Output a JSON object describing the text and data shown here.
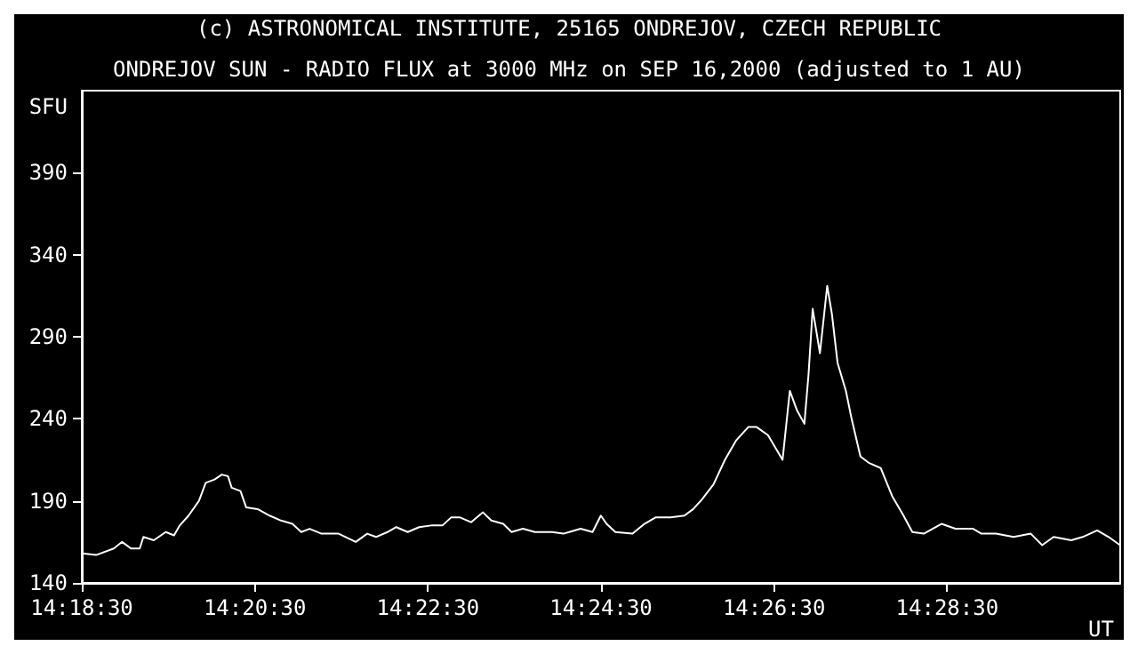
{
  "chart_data": {
    "type": "line",
    "title": "ONDREJOV SUN - RADIO FLUX at 3000 MHz on SEP 16,2000 (adjusted to 1 AU)",
    "annotations": [
      "(c) ASTRONOMICAL INSTITUTE, 25165 ONDREJOV, CZECH REPUBLIC"
    ],
    "xlabel": "UT",
    "ylabel": "SFU",
    "x": [
      14.308333,
      14.3111,
      14.3145,
      14.3161,
      14.3178,
      14.3195,
      14.3202,
      14.3222,
      14.3245,
      14.3261,
      14.3272,
      14.3289,
      14.3309,
      14.3322,
      14.3339,
      14.3353,
      14.3365,
      14.3372,
      14.3389,
      14.34,
      14.3422,
      14.3445,
      14.3467,
      14.3489,
      14.3506,
      14.3522,
      14.3545,
      14.3578,
      14.3611,
      14.3633,
      14.365,
      14.3672,
      14.3689,
      14.3711,
      14.3733,
      14.3756,
      14.3778,
      14.3795,
      14.3811,
      14.3833,
      14.3856,
      14.3872,
      14.3895,
      14.3911,
      14.3933,
      14.3956,
      14.3989,
      14.4011,
      14.4022,
      14.4044,
      14.4067,
      14.4083,
      14.4094,
      14.4111,
      14.4144,
      14.4167,
      14.4189,
      14.4217,
      14.4244,
      14.4261,
      14.4278,
      14.43,
      14.4322,
      14.4344,
      14.4367,
      14.4383,
      14.4405,
      14.4433,
      14.4447,
      14.4461,
      14.4475,
      14.4483,
      14.4491,
      14.4505,
      14.4519,
      14.4528,
      14.4539,
      14.4555,
      14.4566,
      14.4583,
      14.46,
      14.4622,
      14.4644,
      14.4666,
      14.4683,
      14.4705,
      14.4739,
      14.4766,
      14.48,
      14.4816,
      14.4844,
      14.4878,
      14.4911,
      14.4933,
      14.4955,
      14.4989,
      14.5011,
      14.5039,
      14.5061,
      14.5083
    ],
    "series": [
      {
        "color": "#ffffff",
        "values": [
          158,
          157,
          161,
          165,
          161,
          161,
          168,
          166,
          171,
          169,
          175,
          181,
          190,
          201,
          203,
          206,
          205,
          198,
          196,
          186,
          185,
          181,
          178,
          176,
          171,
          173,
          170,
          170,
          165,
          170,
          168,
          171,
          174,
          171,
          174,
          175,
          175,
          180,
          180,
          177,
          183,
          178,
          176,
          171,
          173,
          171,
          171,
          170,
          171,
          173,
          171,
          181,
          176,
          171,
          170,
          176,
          180,
          180,
          181,
          185,
          191,
          200,
          215,
          227,
          235,
          235,
          230,
          215,
          257,
          245,
          237,
          267,
          307,
          280,
          321,
          304,
          274,
          257,
          240,
          217,
          213,
          210,
          193,
          181,
          171,
          170,
          176,
          173,
          173,
          170,
          170,
          168,
          170,
          163,
          168,
          166,
          168,
          172,
          168,
          163
        ]
      }
    ],
    "xlim": [
      14.308333,
      14.508333
    ],
    "xticks": [
      {
        "value": 14.308333,
        "label": "14:18:30"
      },
      {
        "value": 14.341667,
        "label": "14:20:30"
      },
      {
        "value": 14.375,
        "label": "14:22:30"
      },
      {
        "value": 14.408333,
        "label": "14:24:30"
      },
      {
        "value": 14.441667,
        "label": "14:26:30"
      },
      {
        "value": 14.475,
        "label": "14:28:30"
      }
    ],
    "ylim": [
      140,
      440
    ],
    "yticks": [
      140,
      190,
      240,
      290,
      340,
      390
    ],
    "grid": false,
    "marker": "none",
    "line_style": "solid"
  }
}
